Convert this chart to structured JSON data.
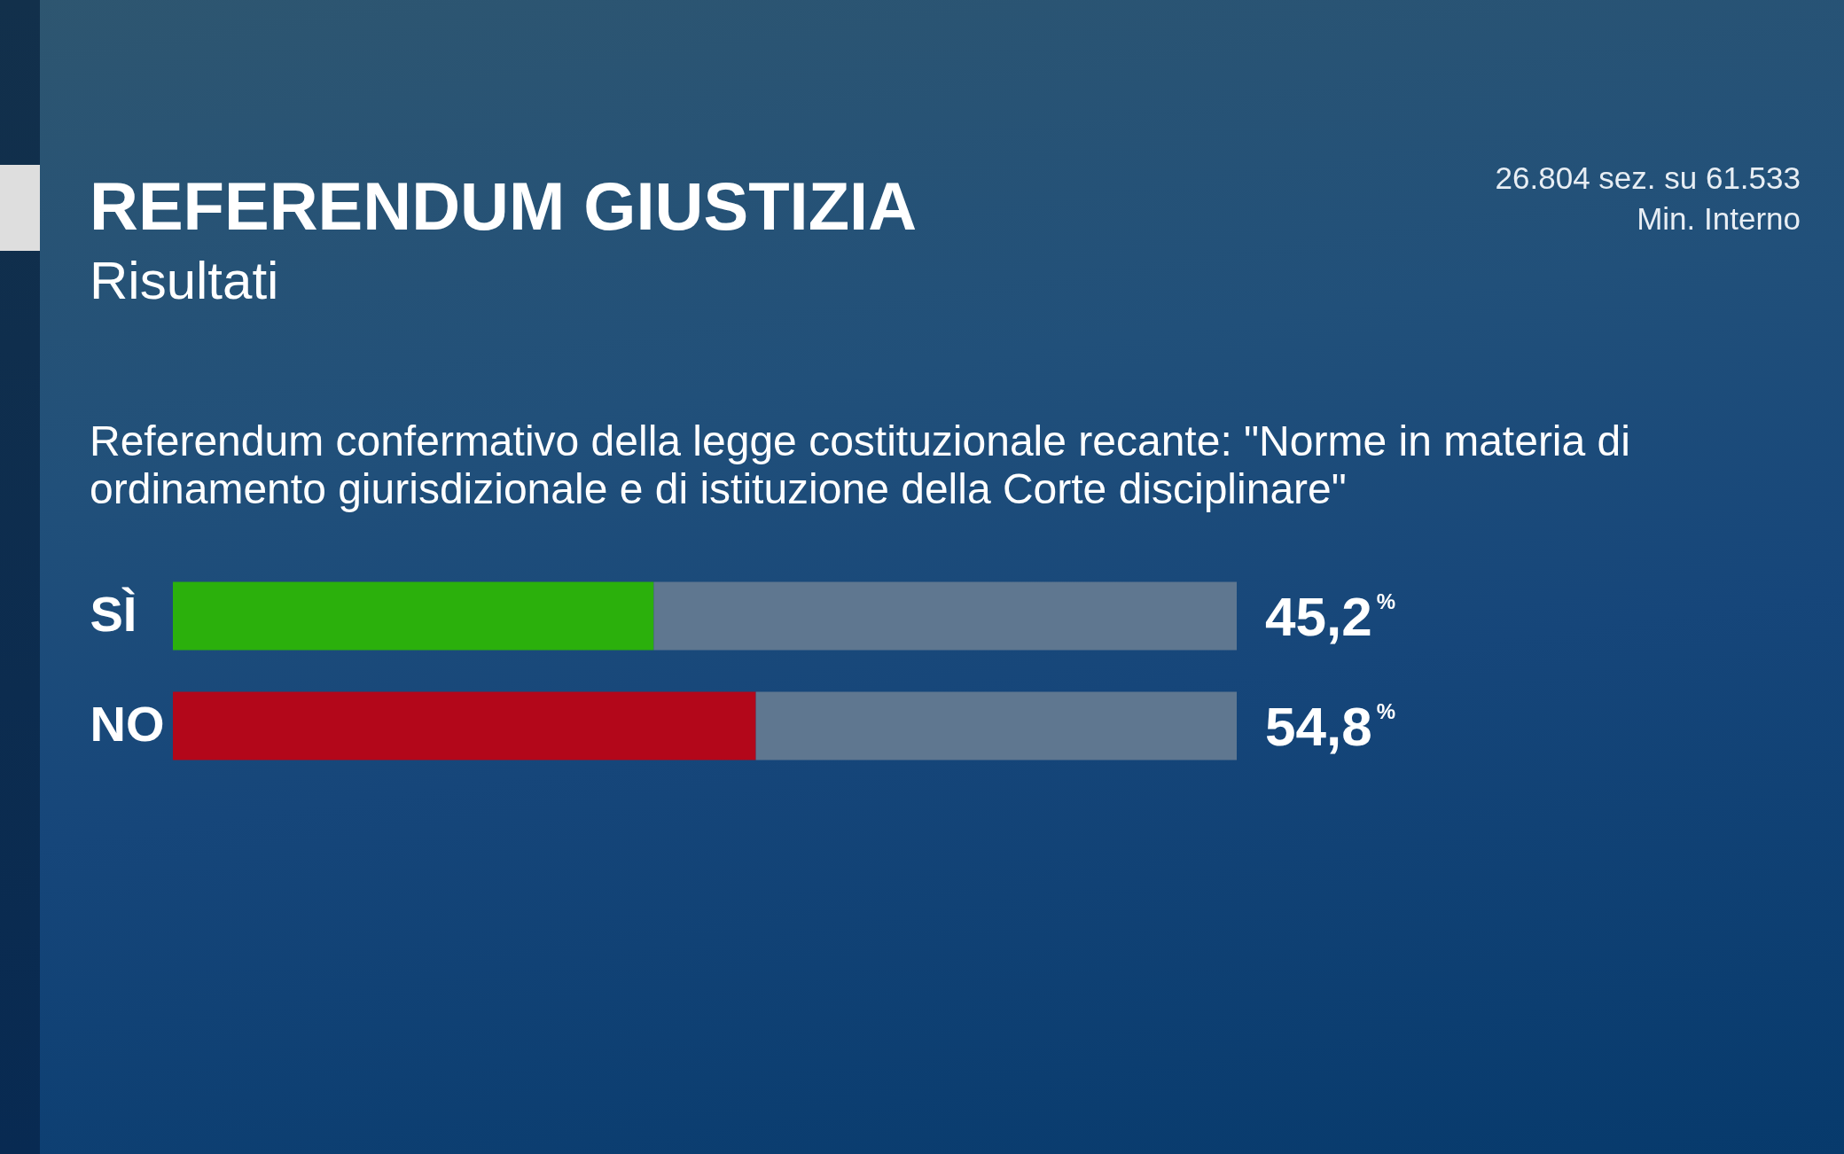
{
  "chart_data": {
    "type": "bar",
    "orientation": "horizontal",
    "stacked": true,
    "title": "REFERENDUM GIUSTIZIA",
    "subtitle": "Risultati",
    "annotations": [
      "Referendum confermativo della legge costituzionale recante: \"Norme in materia di ordinamento giurisdizionale e di istituzione della Corte disciplinare\"",
      "26.804 sez. su 61.533",
      "Min. Interno"
    ],
    "categories": [
      "SÌ",
      "NO"
    ],
    "series": [
      {
        "colors": [
          "#2bb00c",
          "#b3071a"
        ],
        "values": [
          45.2,
          54.8
        ],
        "value_labels": [
          "45,2$^{%}$",
          "54,8$^{%}$"
        ]
      },
      {
        "color": "#5f7790",
        "values": [
          54.8,
          45.2
        ]
      }
    ],
    "xlim": [
      0,
      100
    ],
    "tick_labels": "y"
  }
}
